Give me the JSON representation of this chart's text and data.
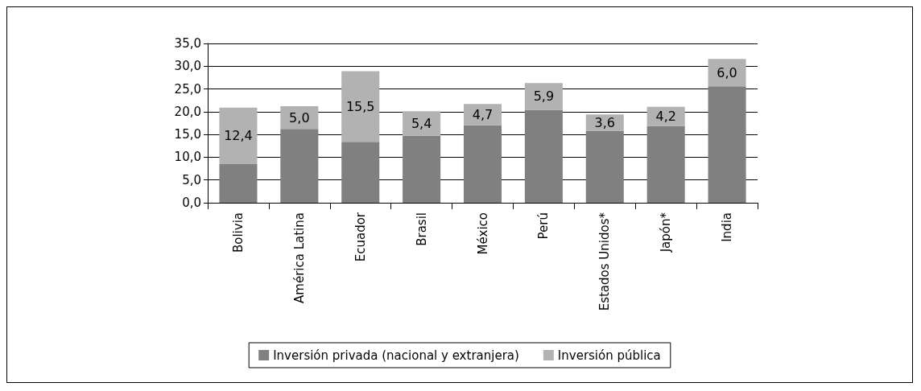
{
  "chart_data": {
    "type": "bar",
    "stacked": true,
    "categories": [
      "Bolivia",
      "América Latina",
      "Ecuador",
      "Brasil",
      "México",
      "Perú",
      "Estados Unidos*",
      "Japón*",
      "India"
    ],
    "series": [
      {
        "name": "Inversión privada (nacional y extranjera)",
        "color": "#808080",
        "values": [
          8.5,
          16.2,
          13.4,
          14.7,
          17.0,
          20.4,
          15.8,
          16.9,
          25.6
        ]
      },
      {
        "name": "Inversión pública",
        "color": "#b2b2b2",
        "values": [
          12.4,
          5.0,
          15.5,
          5.4,
          4.7,
          5.9,
          3.6,
          4.2,
          6.0
        ],
        "value_labels": [
          "12,4",
          "5,0",
          "15,5",
          "5,4",
          "4,7",
          "5,9",
          "3,6",
          "4,2",
          "6,0"
        ]
      }
    ],
    "ylim": [
      0,
      35
    ],
    "yticks": [
      {
        "value": 0,
        "label": "0,0"
      },
      {
        "value": 5,
        "label": "5,0"
      },
      {
        "value": 10,
        "label": "10,0"
      },
      {
        "value": 15,
        "label": "15,0"
      },
      {
        "value": 20,
        "label": "20,0"
      },
      {
        "value": 25,
        "label": "25,0"
      },
      {
        "value": 30,
        "label": "30,0"
      },
      {
        "value": 35,
        "label": "35,0"
      }
    ],
    "grid": "y",
    "legend": "bottom"
  }
}
